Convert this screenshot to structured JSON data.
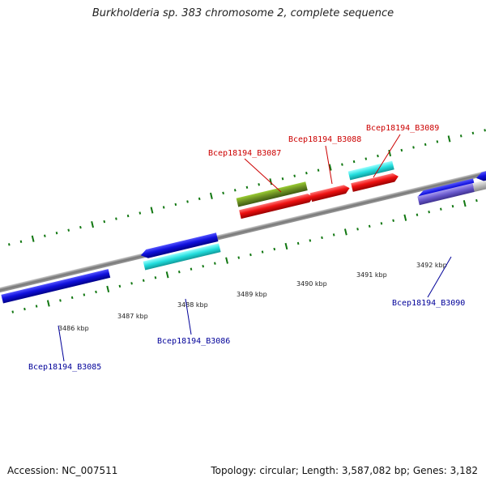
{
  "title": "Burkholderia sp. 383 chromosome 2, complete sequence",
  "footer": {
    "accession": "Accession: NC_007511",
    "summary": "Topology: circular; Length: 3,587,082 bp; Genes: 3,182"
  },
  "colors": {
    "forward_gene_label": "#cc0000",
    "reverse_gene_label": "#000099",
    "backbone": "#888888",
    "tick": "#117711",
    "blue_gene": "#1010dd",
    "cyan_gene": "#22dddd",
    "red_gene": "#ee1111",
    "olive_gene": "#6b8e23",
    "slate_gene": "#6a5acd",
    "gray_gene": "#bbbbbb"
  },
  "kbp_ticks": [
    "3486 kbp",
    "3487 kbp",
    "3488 kbp",
    "3489 kbp",
    "3490 kbp",
    "3491 kbp",
    "3492 kbp"
  ],
  "gene_labels": {
    "forward": [
      "Bcep18194_B3087",
      "Bcep18194_B3088",
      "Bcep18194_B3089"
    ],
    "reverse": [
      "Bcep18194_B3085",
      "Bcep18194_B3086",
      "Bcep18194_B3090"
    ]
  }
}
